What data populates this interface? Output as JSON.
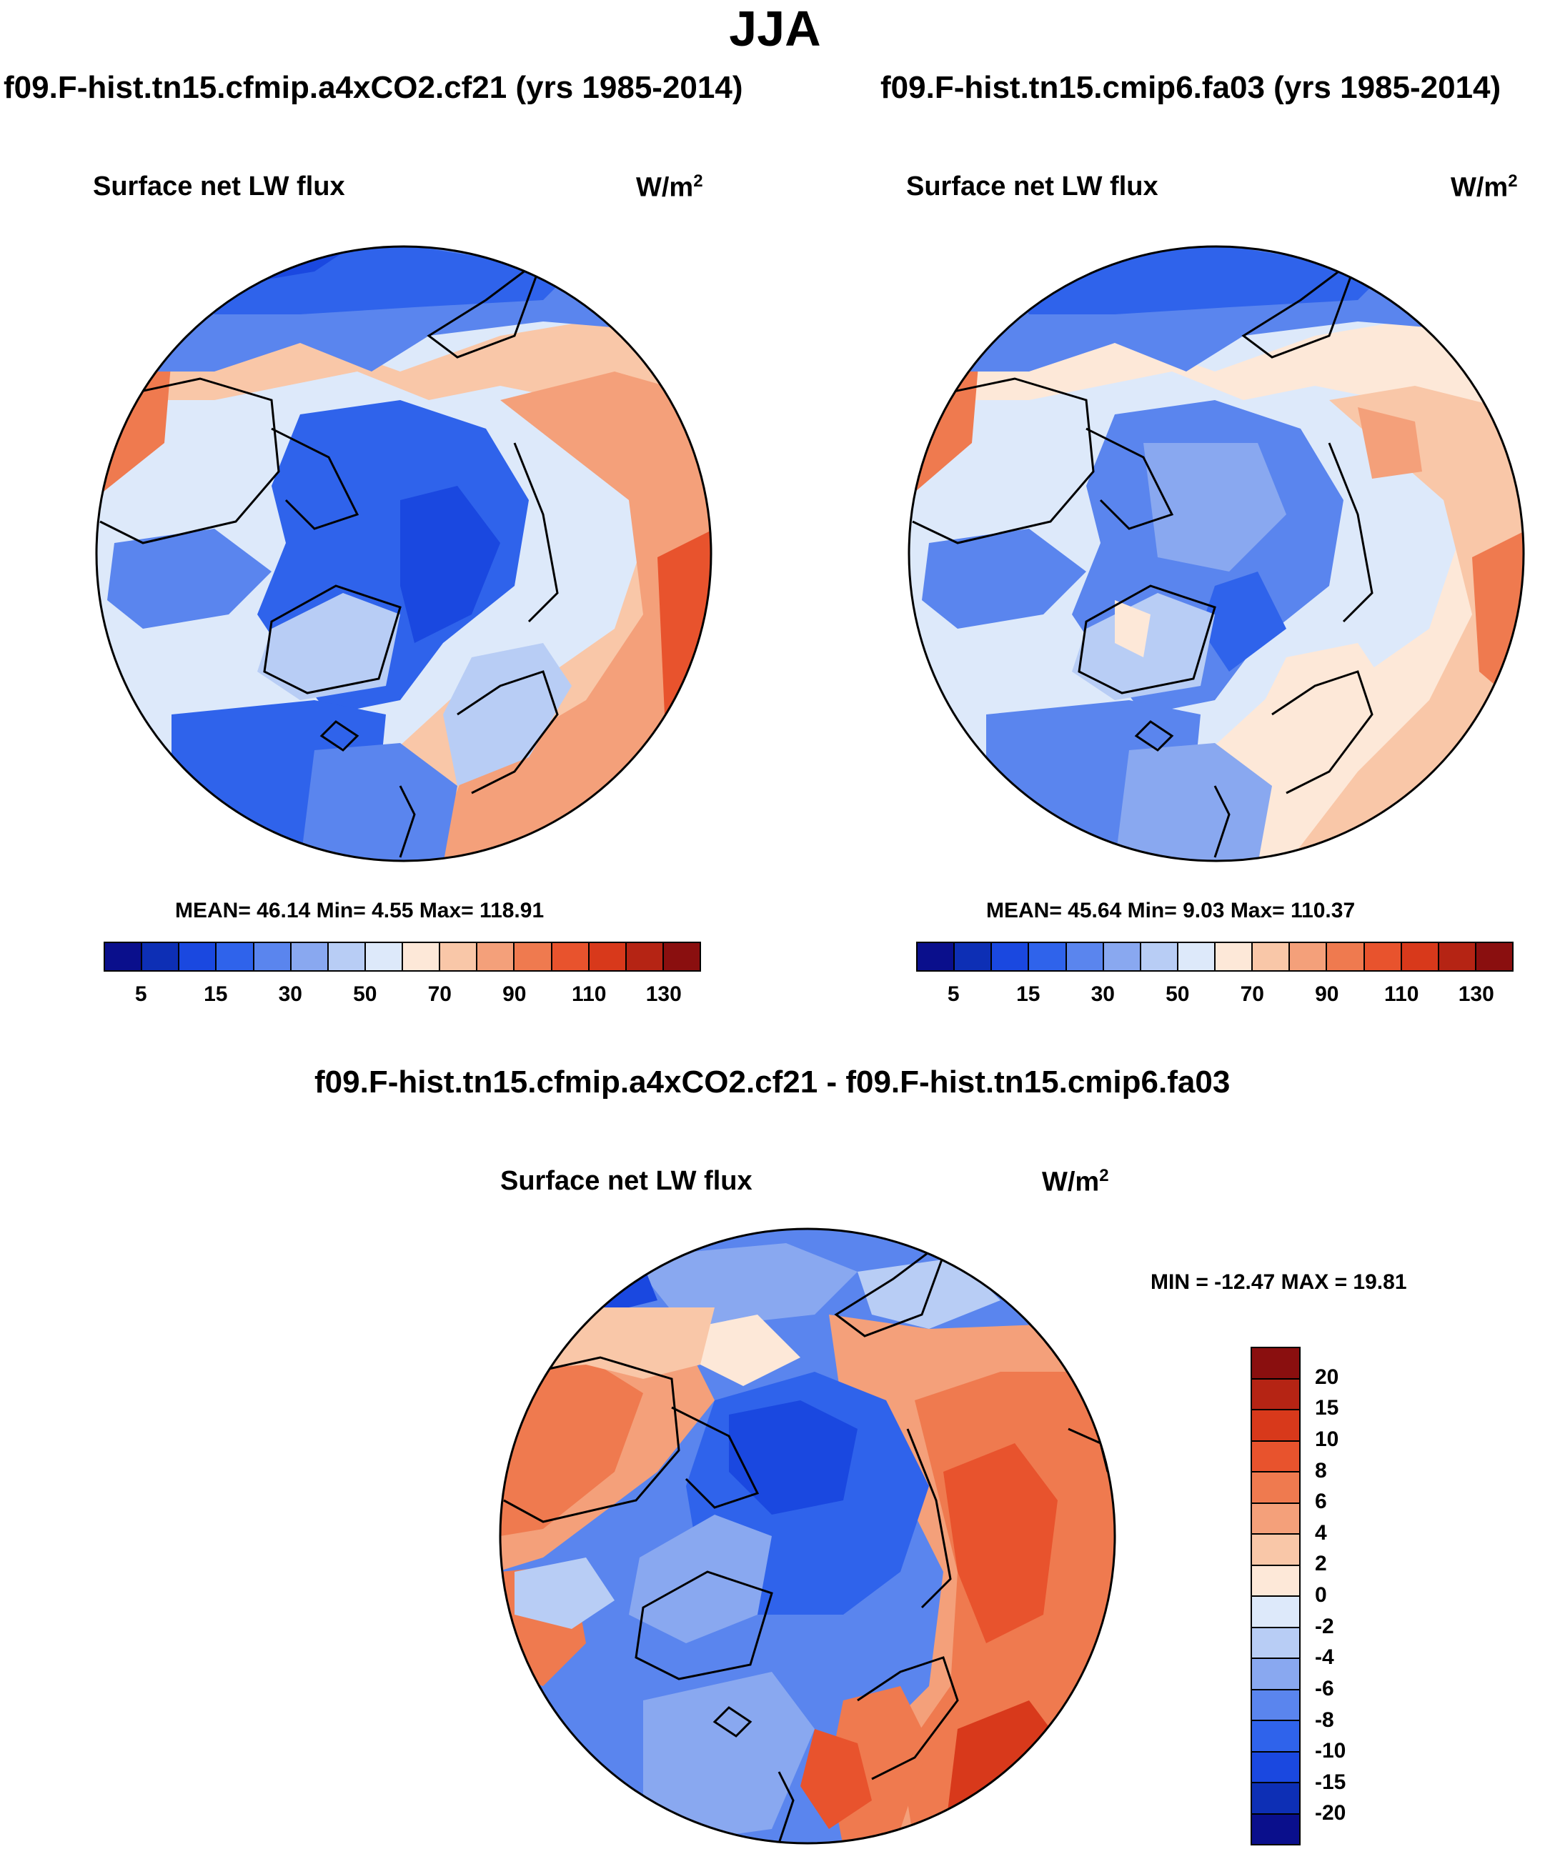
{
  "title": "JJA",
  "panels": [
    {
      "case": "f09.F-hist.tn15.cfmip.a4xCO2.cf21 (yrs 1985-2014)",
      "variable": "Surface net LW flux",
      "units": "W/m",
      "units_sup": "2",
      "stats": "MEAN=  46.14  Min=   4.55  Max= 118.91"
    },
    {
      "case": "f09.F-hist.tn15.cmip6.fa03 (yrs 1985-2014)",
      "variable": "Surface net LW flux",
      "units": "W/m",
      "units_sup": "2",
      "stats": "MEAN=  45.64  Min=   9.03  Max= 110.37"
    }
  ],
  "diff_panel": {
    "case": "f09.F-hist.tn15.cfmip.a4xCO2.cf21 - f09.F-hist.tn15.cmip6.fa03",
    "variable": "Surface net LW flux",
    "units": "W/m",
    "units_sup": "2",
    "stats": "MIN = -12.47 MAX =  19.81"
  },
  "colorbar_abs": {
    "colors": [
      "#0a0f8c",
      "#0d2fb5",
      "#1a48e0",
      "#2f63eb",
      "#5a85ee",
      "#89a8f0",
      "#b8cdf5",
      "#dde9fa",
      "#fde8d8",
      "#f9c7a8",
      "#f4a07a",
      "#ef7a4f",
      "#e8532d",
      "#d8391b",
      "#b52414",
      "#8a0f0f"
    ],
    "ticks": [
      "5",
      "15",
      "30",
      "50",
      "70",
      "90",
      "110",
      "130"
    ]
  },
  "colorbar_diff": {
    "colors": [
      "#8a0f0f",
      "#b52414",
      "#d8391b",
      "#e8532d",
      "#ef7a4f",
      "#f4a07a",
      "#f9c7a8",
      "#fde8d8",
      "#dde9fa",
      "#b8cdf5",
      "#89a8f0",
      "#5a85ee",
      "#2f63eb",
      "#1a48e0",
      "#0d2fb5",
      "#0a0f8c"
    ],
    "ticks": [
      "20",
      "15",
      "10",
      "8",
      "6",
      "4",
      "2",
      "0",
      "-2",
      "-4",
      "-6",
      "-8",
      "-10",
      "-15",
      "-20"
    ]
  }
}
